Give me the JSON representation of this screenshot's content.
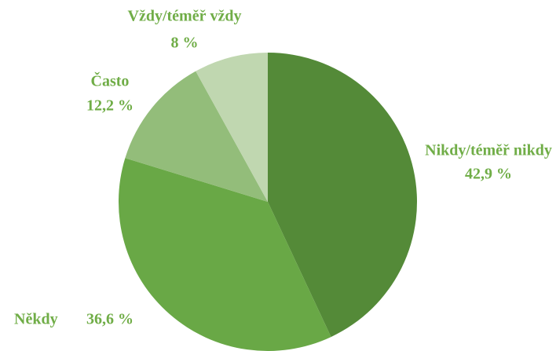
{
  "chart_data": {
    "type": "pie",
    "categories": [
      "Nikdy/téměř nikdy",
      "Někdy",
      "Často",
      "Vždy/téměř vždy"
    ],
    "values": [
      42.9,
      36.6,
      12.2,
      8
    ],
    "value_labels": [
      "42,9 %",
      "36,6 %",
      "12,2 %",
      "8 %"
    ],
    "colors": [
      "#548a38",
      "#69a846",
      "#93bd7a",
      "#c0d7b0"
    ]
  }
}
